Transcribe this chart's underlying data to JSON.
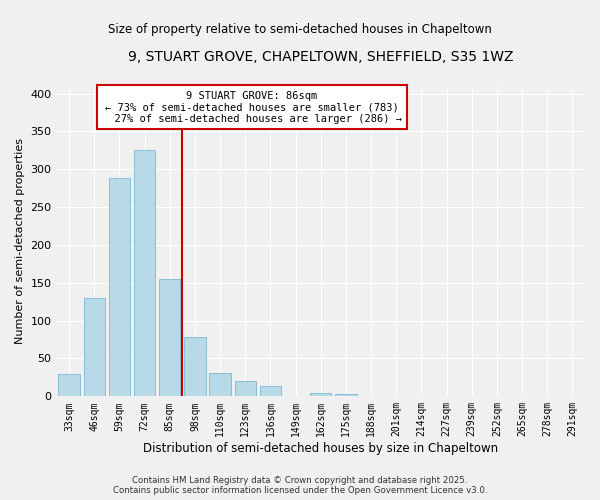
{
  "title": "9, STUART GROVE, CHAPELTOWN, SHEFFIELD, S35 1WZ",
  "subtitle": "Size of property relative to semi-detached houses in Chapeltown",
  "xlabel": "Distribution of semi-detached houses by size in Chapeltown",
  "ylabel": "Number of semi-detached properties",
  "categories": [
    "33sqm",
    "46sqm",
    "59sqm",
    "72sqm",
    "85sqm",
    "98sqm",
    "110sqm",
    "123sqm",
    "136sqm",
    "149sqm",
    "162sqm",
    "175sqm",
    "188sqm",
    "201sqm",
    "214sqm",
    "227sqm",
    "239sqm",
    "252sqm",
    "265sqm",
    "278sqm",
    "291sqm"
  ],
  "values": [
    29,
    130,
    289,
    325,
    155,
    79,
    31,
    20,
    14,
    0,
    5,
    3,
    0,
    0,
    0,
    0,
    0,
    0,
    0,
    0,
    1
  ],
  "bar_color": "#b8d9e8",
  "bar_edge_color": "#7bb8d4",
  "property_line_color": "#cc0000",
  "annotation_box_color": "#ffffff",
  "annotation_box_edge": "#cc0000",
  "property_label": "9 STUART GROVE: 86sqm",
  "pct_smaller": 73,
  "count_smaller": 783,
  "pct_larger": 27,
  "count_larger": 286,
  "ylim": [
    0,
    410
  ],
  "yticks": [
    0,
    50,
    100,
    150,
    200,
    250,
    300,
    350,
    400
  ],
  "background_color": "#f0f0f0",
  "grid_color": "#ffffff",
  "footer_line1": "Contains HM Land Registry data © Crown copyright and database right 2025.",
  "footer_line2": "Contains public sector information licensed under the Open Government Licence v3.0."
}
